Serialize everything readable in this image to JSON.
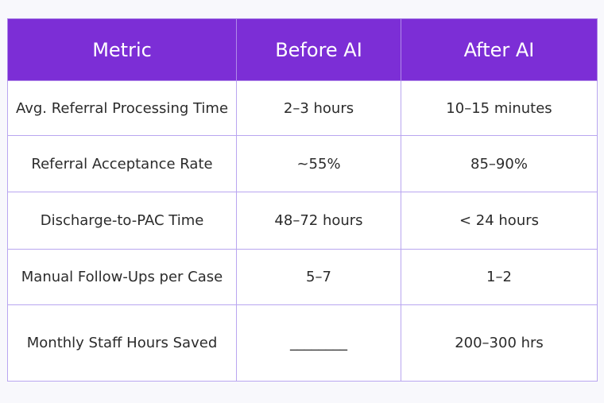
{
  "table": {
    "headers": [
      "Metric",
      "Before AI",
      "After AI"
    ],
    "rows": [
      [
        "Avg. Referral Processing Time",
        "2–3 hours",
        "10–15 minutes"
      ],
      [
        "Referral Acceptance Rate",
        "~55%",
        "85–90%"
      ],
      [
        "Discharge-to-PAC Time",
        "48–72 hours",
        "< 24 hours"
      ],
      [
        "Manual Follow-Ups per Case",
        "5–7",
        "1–2"
      ],
      [
        "Monthly Staff Hours Saved",
        "________",
        "200–300 hrs"
      ]
    ]
  },
  "colors": {
    "header_background": "#7c2ed6",
    "header_text": "#ffffff",
    "border": "#b9a6f0",
    "cell_text": "#2b2b2b",
    "page_background": "#f8f8fc"
  }
}
